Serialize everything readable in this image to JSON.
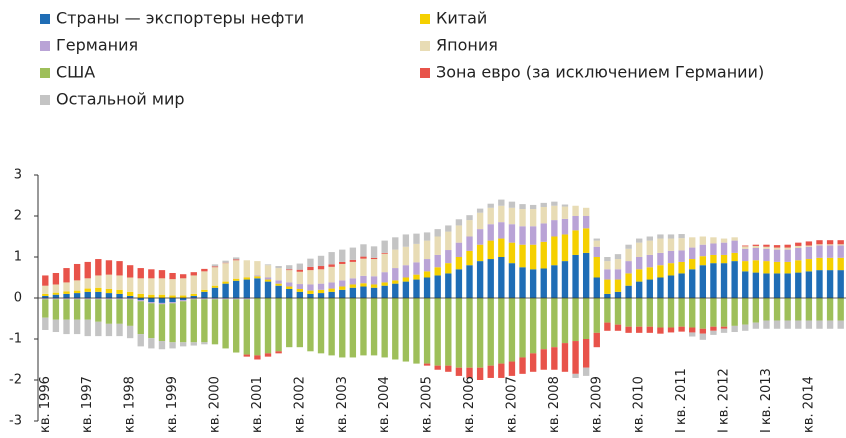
{
  "chart_data": {
    "type": "bar",
    "stacked": true,
    "categories": [
      "кв. 1996",
      null,
      null,
      null,
      "кв. 1997",
      null,
      null,
      null,
      "кв. 1998",
      null,
      null,
      null,
      "кв. 1999",
      null,
      null,
      null,
      "кв. 2000",
      null,
      null,
      null,
      "кв. 2001",
      null,
      null,
      null,
      "кв. 2002",
      null,
      null,
      null,
      "кв. 2003",
      null,
      null,
      null,
      "кв. 2004",
      null,
      null,
      null,
      "кв. 2005",
      null,
      null,
      null,
      "кв. 2006",
      null,
      null,
      null,
      "кв. 2007",
      null,
      null,
      null,
      "кв. 2008",
      null,
      null,
      null,
      "кв. 2009",
      null,
      null,
      null,
      "кв. 2010",
      null,
      null,
      null,
      "I кв. 2011",
      null,
      null,
      null,
      "I кв. 2012",
      null,
      null,
      null,
      "I кв. 2013",
      null,
      null,
      null,
      "кв. 2014",
      null,
      null,
      null
    ],
    "series": [
      {
        "name": "Страны — экспортеры нефти",
        "color": "#1f6db5",
        "values": [
          0.05,
          0.08,
          0.1,
          0.12,
          0.15,
          0.15,
          0.12,
          0.1,
          0.05,
          -0.05,
          -0.1,
          -0.12,
          -0.1,
          -0.05,
          0.05,
          0.15,
          0.25,
          0.35,
          0.42,
          0.45,
          0.48,
          0.4,
          0.3,
          0.22,
          0.15,
          0.1,
          0.12,
          0.15,
          0.2,
          0.25,
          0.28,
          0.25,
          0.3,
          0.35,
          0.4,
          0.45,
          0.5,
          0.55,
          0.6,
          0.7,
          0.8,
          0.9,
          0.95,
          1.0,
          0.85,
          0.75,
          0.7,
          0.72,
          0.8,
          0.9,
          1.05,
          1.1,
          0.5,
          0.1,
          0.15,
          0.3,
          0.4,
          0.45,
          0.5,
          0.55,
          0.6,
          0.7,
          0.8,
          0.85,
          0.85,
          0.9,
          0.65,
          0.62,
          0.6,
          0.6,
          0.6,
          0.62,
          0.65,
          0.68,
          0.68,
          0.68
        ]
      },
      {
        "name": "Китай",
        "color": "#f5d000",
        "values": [
          0.05,
          0.05,
          0.06,
          0.06,
          0.08,
          0.1,
          0.1,
          0.1,
          0.1,
          0.1,
          0.08,
          0.08,
          0.06,
          0.06,
          0.05,
          0.05,
          0.05,
          0.05,
          0.05,
          0.05,
          0.05,
          0.05,
          0.05,
          0.06,
          0.07,
          0.08,
          0.08,
          0.08,
          0.08,
          0.08,
          0.08,
          0.08,
          0.08,
          0.08,
          0.1,
          0.12,
          0.15,
          0.2,
          0.25,
          0.3,
          0.35,
          0.4,
          0.45,
          0.45,
          0.5,
          0.55,
          0.6,
          0.65,
          0.7,
          0.65,
          0.6,
          0.6,
          0.5,
          0.35,
          0.3,
          0.3,
          0.3,
          0.3,
          0.3,
          0.3,
          0.28,
          0.25,
          0.22,
          0.2,
          0.2,
          0.2,
          0.25,
          0.3,
          0.3,
          0.28,
          0.28,
          0.3,
          0.3,
          0.3,
          0.3,
          0.3
        ]
      },
      {
        "name": "Германия",
        "color": "#b9a3d6",
        "values": [
          -0.03,
          -0.03,
          -0.03,
          -0.03,
          -0.03,
          -0.03,
          -0.03,
          -0.03,
          -0.03,
          -0.03,
          -0.03,
          -0.03,
          -0.03,
          -0.03,
          -0.03,
          -0.03,
          -0.03,
          -0.03,
          -0.03,
          -0.03,
          0.02,
          0.05,
          0.08,
          0.1,
          0.12,
          0.15,
          0.15,
          0.15,
          0.15,
          0.15,
          0.18,
          0.2,
          0.25,
          0.3,
          0.3,
          0.3,
          0.3,
          0.3,
          0.32,
          0.35,
          0.35,
          0.38,
          0.4,
          0.4,
          0.45,
          0.45,
          0.45,
          0.45,
          0.4,
          0.38,
          0.35,
          0.3,
          0.25,
          0.25,
          0.25,
          0.3,
          0.3,
          0.3,
          0.3,
          0.3,
          0.28,
          0.28,
          0.28,
          0.28,
          0.3,
          0.3,
          0.3,
          0.3,
          0.3,
          0.3,
          0.3,
          0.3,
          0.3,
          0.3,
          0.3,
          0.3
        ]
      },
      {
        "name": "Япония",
        "color": "#e8dcb5",
        "values": [
          0.2,
          0.2,
          0.22,
          0.25,
          0.25,
          0.3,
          0.35,
          0.35,
          0.35,
          0.38,
          0.4,
          0.4,
          0.4,
          0.42,
          0.45,
          0.45,
          0.45,
          0.45,
          0.45,
          0.42,
          0.35,
          0.3,
          0.3,
          0.3,
          0.3,
          0.35,
          0.35,
          0.38,
          0.4,
          0.4,
          0.42,
          0.42,
          0.45,
          0.45,
          0.45,
          0.45,
          0.45,
          0.45,
          0.45,
          0.42,
          0.4,
          0.4,
          0.4,
          0.4,
          0.4,
          0.42,
          0.42,
          0.4,
          0.35,
          0.3,
          0.25,
          0.2,
          0.15,
          0.2,
          0.25,
          0.3,
          0.35,
          0.35,
          0.35,
          0.3,
          0.3,
          0.25,
          0.2,
          0.15,
          0.1,
          0.08,
          0.06,
          0.05,
          0.05,
          0.05,
          0.05,
          0.05,
          0.03,
          0.03,
          0.03,
          0.03
        ]
      },
      {
        "name": "США",
        "color": "#9ebf5a",
        "values": [
          -0.45,
          -0.5,
          -0.5,
          -0.5,
          -0.5,
          -0.55,
          -0.6,
          -0.6,
          -0.65,
          -0.8,
          -0.85,
          -0.9,
          -0.95,
          -1.0,
          -1.05,
          -1.05,
          -1.1,
          -1.2,
          -1.3,
          -1.35,
          -1.4,
          -1.35,
          -1.3,
          -1.2,
          -1.2,
          -1.3,
          -1.35,
          -1.4,
          -1.45,
          -1.45,
          -1.4,
          -1.4,
          -1.45,
          -1.5,
          -1.55,
          -1.6,
          -1.6,
          -1.65,
          -1.65,
          -1.7,
          -1.7,
          -1.7,
          -1.65,
          -1.6,
          -1.55,
          -1.45,
          -1.35,
          -1.25,
          -1.2,
          -1.1,
          -1.05,
          -1.0,
          -0.85,
          -0.6,
          -0.65,
          -0.7,
          -0.7,
          -0.7,
          -0.72,
          -0.72,
          -0.7,
          -0.72,
          -0.75,
          -0.7,
          -0.7,
          -0.68,
          -0.65,
          -0.6,
          -0.55,
          -0.55,
          -0.55,
          -0.55,
          -0.55,
          -0.55,
          -0.55,
          -0.55
        ]
      },
      {
        "name": "Зона евро (за исключением Германии)",
        "color": "#e8534a",
        "values": [
          0.25,
          0.28,
          0.35,
          0.4,
          0.4,
          0.4,
          0.35,
          0.35,
          0.3,
          0.25,
          0.22,
          0.2,
          0.15,
          0.1,
          0.08,
          0.06,
          0.02,
          0.01,
          0.02,
          -0.05,
          -0.1,
          -0.08,
          -0.05,
          0.02,
          0.05,
          0.08,
          0.08,
          0.06,
          0.05,
          0.05,
          0.05,
          0.03,
          0.02,
          0,
          0,
          0,
          -0.05,
          -0.1,
          -0.15,
          -0.2,
          -0.25,
          -0.3,
          -0.3,
          -0.35,
          -0.35,
          -0.4,
          -0.45,
          -0.5,
          -0.55,
          -0.7,
          -0.8,
          -0.7,
          -0.35,
          -0.2,
          -0.15,
          -0.15,
          -0.15,
          -0.15,
          -0.15,
          -0.12,
          -0.12,
          -0.12,
          -0.12,
          -0.1,
          -0.05,
          0,
          0.02,
          0.03,
          0.05,
          0.06,
          0.07,
          0.08,
          0.1,
          0.1,
          0.1,
          0.1
        ]
      },
      {
        "name": "Остальной мир",
        "color": "#c4c4c4",
        "values": [
          -0.3,
          -0.3,
          -0.35,
          -0.35,
          -0.4,
          -0.35,
          -0.3,
          -0.3,
          -0.3,
          -0.3,
          -0.25,
          -0.2,
          -0.15,
          -0.1,
          -0.08,
          -0.05,
          0.05,
          0.05,
          0.05,
          0,
          0,
          0.02,
          0.05,
          0.1,
          0.15,
          0.2,
          0.25,
          0.3,
          0.3,
          0.3,
          0.3,
          0.28,
          0.3,
          0.3,
          0.3,
          0.25,
          0.2,
          0.18,
          0.15,
          0.15,
          0.12,
          0.1,
          0.1,
          0.15,
          0.15,
          0.12,
          0.1,
          0.1,
          0.1,
          0.05,
          -0.1,
          -0.2,
          0.05,
          0.1,
          0.12,
          0.1,
          0.1,
          0.1,
          0.1,
          0.1,
          0.1,
          -0.1,
          -0.15,
          -0.1,
          -0.1,
          -0.15,
          -0.15,
          -0.15,
          -0.2,
          -0.2,
          -0.2,
          -0.2,
          -0.2,
          -0.2,
          -0.2,
          -0.2
        ]
      }
    ],
    "ylim": [
      -3,
      3
    ],
    "yticks": [
      -3,
      -2,
      -1,
      0,
      1,
      2,
      3
    ],
    "grid": false
  }
}
